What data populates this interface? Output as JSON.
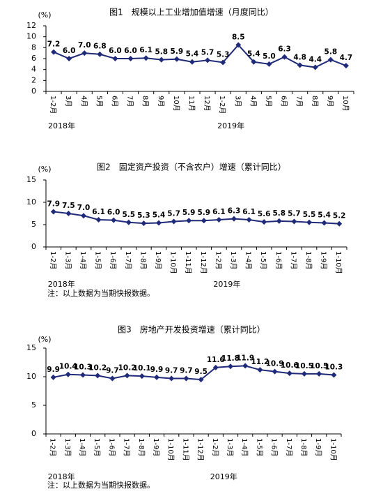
{
  "chart_data": [
    {
      "type": "line",
      "title": "图1　规模以上工业增加值增速（月度同比）",
      "y_label": "(%)",
      "color": "#1f2a78",
      "categories": [
        "1-2月",
        "3月",
        "4月",
        "5月",
        "6月",
        "7月",
        "8月",
        "9月",
        "10月",
        "11月",
        "12月",
        "1-2月",
        "3月",
        "4月",
        "5月",
        "6月",
        "7月",
        "8月",
        "9月",
        "10月"
      ],
      "x_group_labels": [
        "2018年",
        "2019年"
      ],
      "values": [
        7.2,
        6.0,
        7.0,
        6.8,
        6.0,
        6.0,
        6.1,
        5.8,
        5.9,
        5.4,
        5.7,
        5.3,
        8.5,
        5.4,
        5.0,
        6.3,
        4.8,
        4.4,
        5.8,
        4.7
      ],
      "value_labels": [
        "7.2",
        "6.0",
        "7.0",
        "6.8",
        "6.0",
        "6.0",
        "6.1",
        "5.8",
        "5.9",
        "5.4",
        "5.7",
        "5.3",
        "8.5",
        "5.4",
        "5.0",
        "6.3",
        "4.8",
        "4.4",
        "5.8",
        "4.7"
      ],
      "ylim": [
        0,
        12
      ],
      "yticks": [
        0,
        2,
        4,
        6,
        8,
        10,
        12
      ]
    },
    {
      "type": "line",
      "title": "图2　固定资产投资（不含农户）增速（累计同比）",
      "y_label": "(%)",
      "color": "#1f2a78",
      "categories": [
        "1-2月",
        "1-3月",
        "1-4月",
        "1-5月",
        "1-6月",
        "1-7月",
        "1-8月",
        "1-9月",
        "1-10月",
        "1-11月",
        "1-12月",
        "1-2月",
        "1-3月",
        "1-4月",
        "1-5月",
        "1-6月",
        "1-7月",
        "1-8月",
        "1-9月",
        "1-10月"
      ],
      "x_group_labels": [
        "2018年",
        "2019年"
      ],
      "values": [
        7.9,
        7.5,
        7.0,
        6.1,
        6.0,
        5.5,
        5.3,
        5.4,
        5.7,
        5.9,
        5.9,
        6.1,
        6.3,
        6.1,
        5.6,
        5.8,
        5.7,
        5.5,
        5.4,
        5.2
      ],
      "value_labels": [
        "7.9",
        "7.5",
        "7.0",
        "6.1",
        "6.0",
        "5.5",
        "5.3",
        "5.4",
        "5.7",
        "5.9",
        "5.9",
        "6.1",
        "6.3",
        "6.1",
        "5.6",
        "5.8",
        "5.7",
        "5.5",
        "5.4",
        "5.2"
      ],
      "ylim": [
        0,
        15
      ],
      "yticks": [
        0,
        5,
        10,
        15
      ],
      "note": "注：以上数据为当期快报数据。"
    },
    {
      "type": "line",
      "title": "图3　房地产开发投资增速（累计同比）",
      "y_label": "(%)",
      "color": "#1f2a78",
      "categories": [
        "1-2月",
        "1-3月",
        "1-4月",
        "1-5月",
        "1-6月",
        "1-7月",
        "1-8月",
        "1-9月",
        "1-10月",
        "1-11月",
        "1-12月",
        "1-2月",
        "1-3月",
        "1-4月",
        "1-5月",
        "1-6月",
        "1-7月",
        "1-8月",
        "1-9月",
        "1-10月"
      ],
      "x_group_labels": [
        "2018年",
        "2019年"
      ],
      "values": [
        9.9,
        10.4,
        10.3,
        10.2,
        9.7,
        10.2,
        10.1,
        9.9,
        9.7,
        9.7,
        9.5,
        11.6,
        11.8,
        11.9,
        11.2,
        10.9,
        10.6,
        10.5,
        10.5,
        10.3
      ],
      "value_labels": [
        "9.9",
        "10.4",
        "10.3",
        "10.2",
        "9.7",
        "10.2",
        "10.1",
        "9.9",
        "9.7",
        "9.7",
        "9.5",
        "11.6",
        "11.8",
        "11.9",
        "11.2",
        "10.9",
        "10.6",
        "10.5",
        "10.5",
        "10.3"
      ],
      "ylim": [
        0,
        15
      ],
      "yticks": [
        0,
        5,
        10,
        15
      ],
      "note": "注：以上数据为当期快报数据。"
    }
  ]
}
